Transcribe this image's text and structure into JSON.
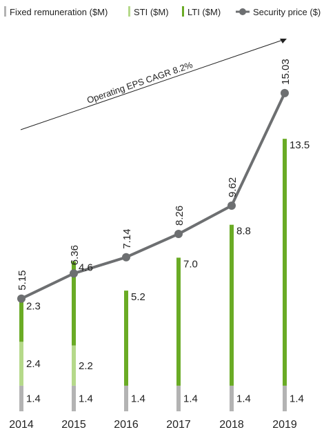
{
  "chart_data": {
    "type": "bar",
    "categories": [
      "2014",
      "2015",
      "2016",
      "2017",
      "2018",
      "2019"
    ],
    "series": [
      {
        "name": "Fixed remuneration ($M)",
        "type": "stacked-bar",
        "values": [
          1.4,
          1.4,
          1.4,
          1.4,
          1.4,
          1.4
        ],
        "labels": [
          "1.4",
          "1.4",
          "1.4",
          "1.4",
          "1.4",
          "1.4"
        ],
        "color": "#b3b3b3"
      },
      {
        "name": "STI ($M)",
        "type": "stacked-bar",
        "values": [
          2.4,
          2.2,
          0,
          0,
          0,
          0
        ],
        "labels": [
          "2.4",
          "2.2",
          "",
          "",
          "",
          ""
        ],
        "color": "#b5d98a"
      },
      {
        "name": "LTI  ($M)",
        "type": "stacked-bar",
        "values": [
          2.3,
          4.6,
          5.2,
          7.0,
          8.8,
          13.5
        ],
        "labels": [
          "2.3",
          "4.6",
          "5.2",
          "7.0",
          "8.8",
          "13.5"
        ],
        "color": "#6aab25"
      },
      {
        "name": "Security price ($)",
        "type": "line",
        "values": [
          5.15,
          6.36,
          7.14,
          8.26,
          9.62,
          15.03
        ],
        "labels": [
          "5.15",
          "6.36",
          "7.14",
          "8.26",
          "9.62",
          "15.03"
        ],
        "color": "#6d6f71"
      }
    ],
    "annotation": "Operating EPS CAGR 8.2%",
    "legend_position": "top-left",
    "grid": false
  }
}
